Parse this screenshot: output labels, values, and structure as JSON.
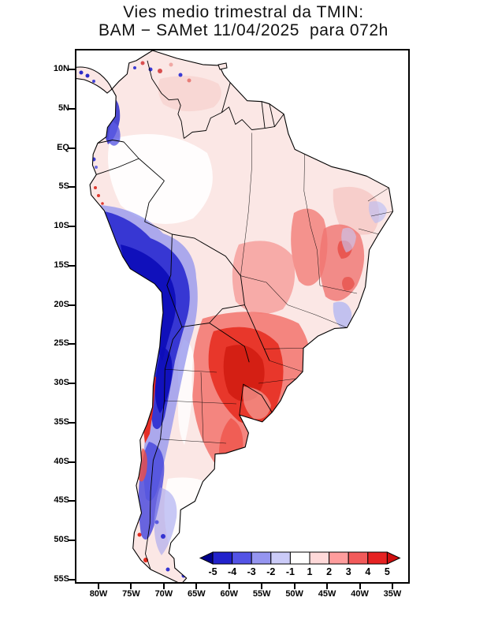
{
  "figure": {
    "title_line1": "Vies medio trimestral da TMIN:",
    "title_line2": "BAM − SAMet 11/04/2025  para 072h"
  },
  "map": {
    "lat_ticks": [
      "10N",
      "5N",
      "EQ",
      "5S",
      "10S",
      "15S",
      "20S",
      "25S",
      "30S",
      "35S",
      "40S",
      "45S",
      "50S",
      "55S"
    ],
    "lon_ticks": [
      "80W",
      "75W",
      "70W",
      "65W",
      "60W",
      "55W",
      "50W",
      "45W",
      "40W",
      "35W"
    ]
  },
  "colorbar": {
    "labels": [
      "-5",
      "-4",
      "-3",
      "-2",
      "-1",
      "1",
      "2",
      "3",
      "4",
      "5"
    ],
    "segment_colors": [
      "#2222cc",
      "#5353e6",
      "#9595f0",
      "#cbcbf8",
      "#ffffff",
      "#ffd9d9",
      "#ff9d9d",
      "#f25a5a",
      "#e62222"
    ],
    "arrow_left_color": "#00008b",
    "arrow_right_color": "#cf0e0e"
  },
  "chart_data": {
    "type": "heatmap",
    "title": "Vies medio trimestral da TMIN: BAM − SAMet 11/04/2025 para 072h",
    "levels": [
      -5,
      -4,
      -3,
      -2,
      -1,
      1,
      2,
      3,
      4,
      5
    ],
    "lat_ticks": [
      "10N",
      "5N",
      "EQ",
      "5S",
      "10S",
      "15S",
      "20S",
      "25S",
      "30S",
      "35S",
      "40S",
      "45S",
      "50S",
      "55S"
    ],
    "lon_ticks": [
      "80W",
      "75W",
      "70W",
      "65W",
      "60W",
      "55W",
      "50W",
      "45W",
      "40W",
      "35W"
    ],
    "legend_position": "bottom-right inside plot"
  }
}
